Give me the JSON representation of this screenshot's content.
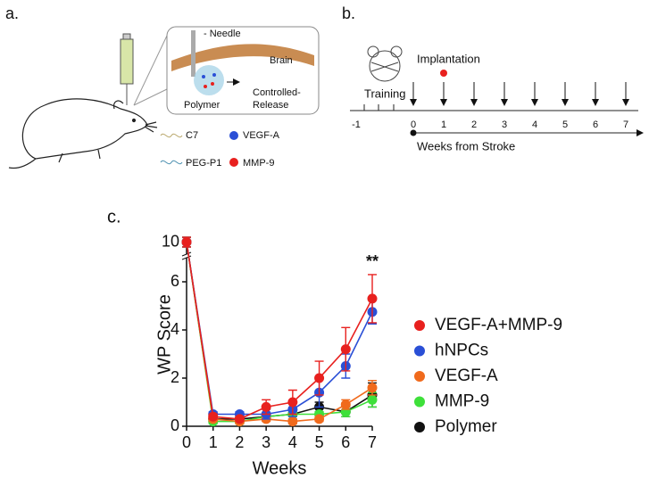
{
  "panel_a": {
    "label": "a.",
    "needle": "- Needle",
    "brain": "Brain",
    "polymer": "Polymer",
    "release": [
      "Controlled-",
      "Release"
    ],
    "legend": [
      "C7",
      "VEGF-A",
      "PEG-P1",
      "MMP-9"
    ]
  },
  "panel_b": {
    "label": "b.",
    "implantation": "Implantation",
    "training": "Training",
    "ticks": [
      "-1",
      "0",
      "1",
      "2",
      "3",
      "4",
      "5",
      "6",
      "7"
    ],
    "axis_label": "Weeks from Stroke"
  },
  "panel_c_label": "c.",
  "chart_data": {
    "type": "line",
    "x_label": "Weeks",
    "y_label": "WP Score",
    "x": [
      0,
      1,
      2,
      3,
      4,
      5,
      6,
      7
    ],
    "xlim": [
      0,
      7
    ],
    "xticks": [
      0,
      1,
      2,
      3,
      4,
      5,
      6,
      7
    ],
    "ylim": [
      0,
      10
    ],
    "yticks": [
      0,
      2,
      4,
      6,
      10
    ],
    "y_break": [
      7,
      9.5
    ],
    "annotation": "**",
    "series": [
      {
        "name": "VEGF-A+MMP-9",
        "color": "#e8201e",
        "values": [
          10,
          0.4,
          0.3,
          0.8,
          1.0,
          2.0,
          3.2,
          5.3
        ],
        "errors": [
          0.2,
          0.1,
          0.1,
          0.3,
          0.5,
          0.7,
          0.9,
          1.0
        ]
      },
      {
        "name": "hNPCs",
        "color": "#2a4fd6",
        "values": [
          10,
          0.5,
          0.5,
          0.5,
          0.7,
          1.4,
          2.5,
          4.75
        ],
        "errors": [
          0.2,
          0.1,
          0.1,
          0.2,
          0.3,
          0.6,
          0.5,
          0.5
        ]
      },
      {
        "name": "VEGF-A",
        "color": "#f06a1c",
        "values": [
          10,
          0.3,
          0.2,
          0.3,
          0.2,
          0.3,
          0.9,
          1.6
        ],
        "errors": [
          0.2,
          0.1,
          0.1,
          0.1,
          0.1,
          0.1,
          0.2,
          0.3
        ]
      },
      {
        "name": "MMP-9",
        "color": "#3ee03a",
        "values": [
          10,
          0.2,
          0.2,
          0.4,
          0.5,
          0.5,
          0.6,
          1.1
        ],
        "errors": [
          0.2,
          0.1,
          0.1,
          0.1,
          0.1,
          0.1,
          0.2,
          0.3
        ]
      },
      {
        "name": "Polymer",
        "color": "#111111",
        "values": [
          10,
          0.3,
          0.3,
          0.4,
          0.5,
          0.8,
          0.6,
          1.3
        ],
        "errors": [
          0.2,
          0.1,
          0.1,
          0.1,
          0.2,
          0.2,
          0.2,
          0.5
        ]
      }
    ]
  }
}
